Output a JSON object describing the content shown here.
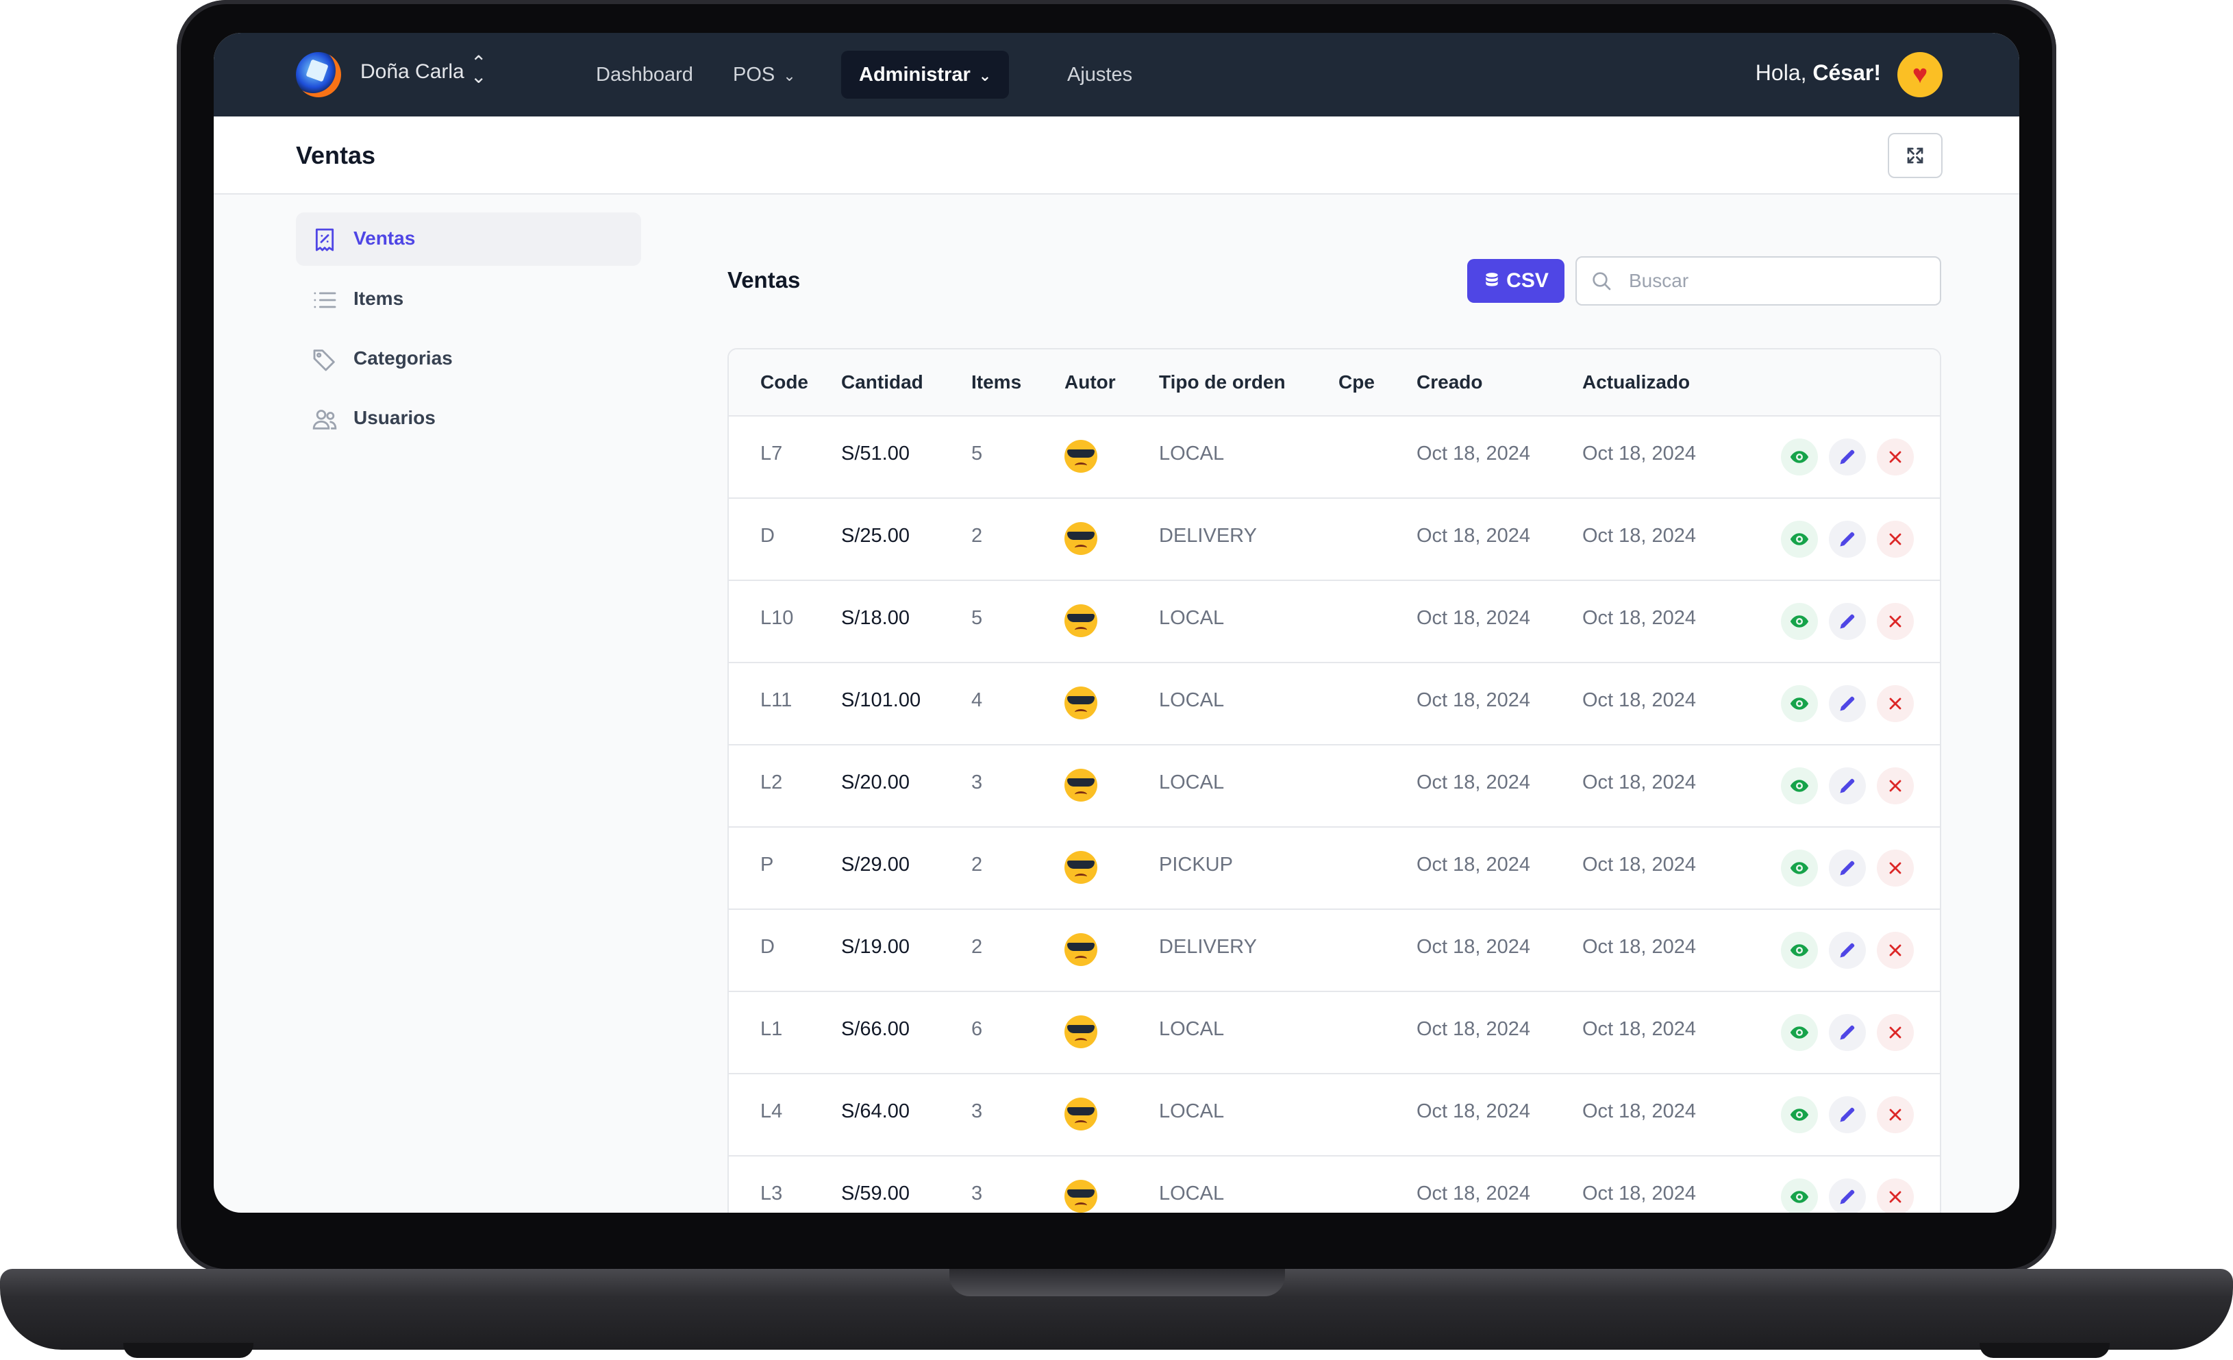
{
  "nav": {
    "org_name": "Doña Carla",
    "items": [
      {
        "label": "Dashboard"
      },
      {
        "label": "POS"
      },
      {
        "label": "Administrar"
      },
      {
        "label": "Ajustes"
      }
    ],
    "greeting_prefix": "Hola,",
    "user_name": "César!"
  },
  "header": {
    "title": "Ventas"
  },
  "sidebar": {
    "items": [
      {
        "label": "Ventas",
        "icon": "receipt-icon"
      },
      {
        "label": "Items",
        "icon": "list-icon"
      },
      {
        "label": "Categorias",
        "icon": "tag-icon"
      },
      {
        "label": "Usuarios",
        "icon": "users-icon"
      }
    ]
  },
  "content": {
    "title": "Ventas",
    "csv_label": "CSV",
    "search_placeholder": "Buscar"
  },
  "table": {
    "columns": [
      "Code",
      "Cantidad",
      "Items",
      "Autor",
      "Tipo de orden",
      "Cpe",
      "Creado",
      "Actualizado"
    ],
    "rows": [
      {
        "code": "L7",
        "cantidad": "S/51.00",
        "items": "5",
        "tipo": "LOCAL",
        "creado": "Oct 18, 2024",
        "actualizado": "Oct 18, 2024"
      },
      {
        "code": "D",
        "cantidad": "S/25.00",
        "items": "2",
        "tipo": "DELIVERY",
        "creado": "Oct 18, 2024",
        "actualizado": "Oct 18, 2024"
      },
      {
        "code": "L10",
        "cantidad": "S/18.00",
        "items": "5",
        "tipo": "LOCAL",
        "creado": "Oct 18, 2024",
        "actualizado": "Oct 18, 2024"
      },
      {
        "code": "L11",
        "cantidad": "S/101.00",
        "items": "4",
        "tipo": "LOCAL",
        "creado": "Oct 18, 2024",
        "actualizado": "Oct 18, 2024"
      },
      {
        "code": "L2",
        "cantidad": "S/20.00",
        "items": "3",
        "tipo": "LOCAL",
        "creado": "Oct 18, 2024",
        "actualizado": "Oct 18, 2024"
      },
      {
        "code": "P",
        "cantidad": "S/29.00",
        "items": "2",
        "tipo": "PICKUP",
        "creado": "Oct 18, 2024",
        "actualizado": "Oct 18, 2024"
      },
      {
        "code": "D",
        "cantidad": "S/19.00",
        "items": "2",
        "tipo": "DELIVERY",
        "creado": "Oct 18, 2024",
        "actualizado": "Oct 18, 2024"
      },
      {
        "code": "L1",
        "cantidad": "S/66.00",
        "items": "6",
        "tipo": "LOCAL",
        "creado": "Oct 18, 2024",
        "actualizado": "Oct 18, 2024"
      },
      {
        "code": "L4",
        "cantidad": "S/64.00",
        "items": "3",
        "tipo": "LOCAL",
        "creado": "Oct 18, 2024",
        "actualizado": "Oct 18, 2024"
      },
      {
        "code": "L3",
        "cantidad": "S/59.00",
        "items": "3",
        "tipo": "LOCAL",
        "creado": "Oct 18, 2024",
        "actualizado": "Oct 18, 2024"
      }
    ]
  },
  "colors": {
    "topbar": "#1f2937",
    "accent": "#4f46e5",
    "view": "#16a34a",
    "delete": "#dc2626"
  }
}
